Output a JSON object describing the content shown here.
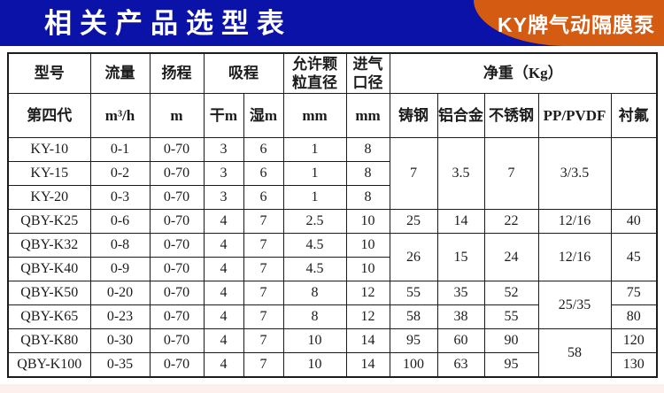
{
  "banner": {
    "title": "相关产品选型表",
    "badge": "KY牌气动隔膜泵"
  },
  "theme": {
    "brand_blue": "#0a12a7",
    "brand_orange": "#d45c12",
    "table_border": "#1b1b1b",
    "footer_pink": "#fbf0ec"
  },
  "table": {
    "header_rows": [
      [
        {
          "t": "型号"
        },
        {
          "t": "流量"
        },
        {
          "t": "扬程"
        },
        {
          "t": "吸程",
          "cs": 2
        },
        {
          "t": "允许颗\n粒直径"
        },
        {
          "t": "进气\n口径"
        },
        {
          "t": "净重（Kg）",
          "cs": 5
        }
      ],
      [
        {
          "t": "第四代"
        },
        {
          "t": "m³/h"
        },
        {
          "t": "m"
        },
        {
          "t": "干m"
        },
        {
          "t": "湿m"
        },
        {
          "t": "mm"
        },
        {
          "t": "mm"
        },
        {
          "t": "铸钢"
        },
        {
          "t": "铝合金"
        },
        {
          "t": "不锈钢"
        },
        {
          "t": "PP/PVDF"
        },
        {
          "t": "衬氟"
        }
      ]
    ],
    "body_rows": [
      [
        {
          "t": "KY-10"
        },
        {
          "t": "0-1"
        },
        {
          "t": "0-70"
        },
        {
          "t": "3"
        },
        {
          "t": "6"
        },
        {
          "t": "1"
        },
        {
          "t": "8"
        },
        {
          "t": "7",
          "rs": 3
        },
        {
          "t": "3.5",
          "rs": 3
        },
        {
          "t": "7",
          "rs": 3
        },
        {
          "t": "3/3.5",
          "rs": 3
        },
        {
          "t": "",
          "rs": 3
        }
      ],
      [
        {
          "t": "KY-15"
        },
        {
          "t": "0-2"
        },
        {
          "t": "0-70"
        },
        {
          "t": "3"
        },
        {
          "t": "6"
        },
        {
          "t": "1"
        },
        {
          "t": "8"
        }
      ],
      [
        {
          "t": "KY-20"
        },
        {
          "t": "0-3"
        },
        {
          "t": "0-70"
        },
        {
          "t": "3"
        },
        {
          "t": "6"
        },
        {
          "t": "1"
        },
        {
          "t": "8"
        }
      ],
      [
        {
          "t": "QBY-K25"
        },
        {
          "t": "0-6"
        },
        {
          "t": "0-70"
        },
        {
          "t": "4"
        },
        {
          "t": "7"
        },
        {
          "t": "2.5"
        },
        {
          "t": "10"
        },
        {
          "t": "25"
        },
        {
          "t": "14"
        },
        {
          "t": "22"
        },
        {
          "t": "12/16"
        },
        {
          "t": "40"
        }
      ],
      [
        {
          "t": "QBY-K32"
        },
        {
          "t": "0-8"
        },
        {
          "t": "0-70"
        },
        {
          "t": "4"
        },
        {
          "t": "7"
        },
        {
          "t": "4.5"
        },
        {
          "t": "10"
        },
        {
          "t": "26",
          "rs": 2
        },
        {
          "t": "15",
          "rs": 2
        },
        {
          "t": "24",
          "rs": 2
        },
        {
          "t": "12/16",
          "rs": 2
        },
        {
          "t": "45",
          "rs": 2
        }
      ],
      [
        {
          "t": "QBY-K40"
        },
        {
          "t": "0-9"
        },
        {
          "t": "0-70"
        },
        {
          "t": "4"
        },
        {
          "t": "7"
        },
        {
          "t": "4.5"
        },
        {
          "t": "10"
        }
      ],
      [
        {
          "t": "QBY-K50"
        },
        {
          "t": "0-20"
        },
        {
          "t": "0-70"
        },
        {
          "t": "4"
        },
        {
          "t": "7"
        },
        {
          "t": "8"
        },
        {
          "t": "12"
        },
        {
          "t": "55"
        },
        {
          "t": "35"
        },
        {
          "t": "52"
        },
        {
          "t": "25/35",
          "rs": 2
        },
        {
          "t": "75"
        }
      ],
      [
        {
          "t": "QBY-K65"
        },
        {
          "t": "0-23"
        },
        {
          "t": "0-70"
        },
        {
          "t": "4"
        },
        {
          "t": "7"
        },
        {
          "t": "8"
        },
        {
          "t": "12"
        },
        {
          "t": "58"
        },
        {
          "t": "38"
        },
        {
          "t": "55"
        },
        {
          "t": "80"
        }
      ],
      [
        {
          "t": "QBY-K80"
        },
        {
          "t": "0-30"
        },
        {
          "t": "0-70"
        },
        {
          "t": "4"
        },
        {
          "t": "7"
        },
        {
          "t": "10"
        },
        {
          "t": "14"
        },
        {
          "t": "95"
        },
        {
          "t": "60"
        },
        {
          "t": "90"
        },
        {
          "t": "58",
          "rs": 2
        },
        {
          "t": "120"
        }
      ],
      [
        {
          "t": "QBY-K100"
        },
        {
          "t": "0-35"
        },
        {
          "t": "0-70"
        },
        {
          "t": "4"
        },
        {
          "t": "7"
        },
        {
          "t": "10"
        },
        {
          "t": "14"
        },
        {
          "t": "100"
        },
        {
          "t": "63"
        },
        {
          "t": "95"
        },
        {
          "t": "130"
        }
      ]
    ]
  }
}
